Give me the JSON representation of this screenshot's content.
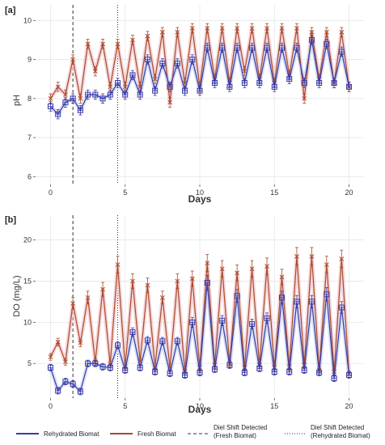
{
  "chart_data": [
    {
      "type": "line",
      "panel_label": "[a]",
      "xlabel": "Days",
      "ylabel": "pH",
      "xlim": [
        -1,
        21
      ],
      "ylim": [
        5.8,
        10.4
      ],
      "xticks": [
        0,
        5,
        10,
        15,
        20
      ],
      "yticks": [
        6,
        7,
        8,
        9,
        10
      ],
      "vlines": [
        {
          "x": 1.5,
          "style": "dashed"
        },
        {
          "x": 4.5,
          "style": "dotted"
        }
      ],
      "series": [
        {
          "name": "Rehydrated Biomat",
          "x": [
            0,
            0.5,
            1,
            1.5,
            2,
            2.5,
            3,
            3.5,
            4,
            4.5,
            5,
            5.5,
            6,
            6.5,
            7,
            7.5,
            8,
            8.5,
            9,
            9.5,
            10,
            10.5,
            11,
            11.5,
            12,
            12.5,
            13,
            13.5,
            14,
            14.5,
            15,
            15.5,
            16,
            16.5,
            17,
            17.5,
            18,
            18.5,
            19,
            19.5,
            20
          ],
          "values": [
            7.8,
            7.6,
            7.9,
            8.0,
            7.7,
            8.1,
            8.1,
            8.0,
            8.1,
            8.4,
            8.1,
            8.6,
            8.1,
            9.0,
            8.2,
            8.9,
            8.3,
            8.9,
            8.2,
            9.0,
            8.2,
            9.3,
            8.4,
            9.3,
            8.3,
            9.3,
            8.4,
            9.3,
            8.4,
            9.3,
            8.3,
            9.3,
            8.5,
            9.3,
            8.4,
            9.5,
            8.4,
            9.4,
            8.4,
            9.2,
            8.3
          ]
        },
        {
          "name": "Fresh Biomat",
          "x": [
            0,
            0.5,
            1,
            1.5,
            2,
            2.5,
            3,
            3.5,
            4,
            4.5,
            5,
            5.5,
            6,
            6.5,
            7,
            7.5,
            8,
            8.5,
            9,
            9.5,
            10,
            10.5,
            11,
            11.5,
            12,
            12.5,
            13,
            13.5,
            14,
            14.5,
            15,
            15.5,
            16,
            16.5,
            17,
            17.5,
            18,
            18.5,
            19,
            19.5,
            20
          ],
          "values": [
            8.0,
            8.3,
            8.1,
            9.0,
            8.0,
            9.4,
            8.7,
            9.4,
            8.3,
            9.4,
            8.3,
            9.5,
            8.3,
            9.6,
            8.5,
            9.7,
            7.9,
            9.7,
            8.4,
            9.8,
            8.3,
            9.8,
            8.5,
            9.8,
            8.4,
            9.8,
            8.7,
            9.8,
            8.5,
            9.8,
            8.4,
            9.8,
            8.6,
            9.8,
            8.0,
            9.7,
            8.5,
            9.7,
            8.4,
            9.7,
            8.3
          ]
        }
      ]
    },
    {
      "type": "line",
      "panel_label": "[b]",
      "xlabel": "Days",
      "ylabel": "DO (mg/L)",
      "xlim": [
        -1,
        21
      ],
      "ylim": [
        0.8,
        23
      ],
      "xticks": [
        0,
        5,
        10,
        15,
        20
      ],
      "yticks": [
        5,
        10,
        15,
        20
      ],
      "vlines": [
        {
          "x": 1.5,
          "style": "dashed"
        },
        {
          "x": 4.5,
          "style": "dotted"
        }
      ],
      "series": [
        {
          "name": "Rehydrated Biomat",
          "x": [
            0,
            0.5,
            1,
            1.5,
            2,
            2.5,
            3,
            3.5,
            4,
            4.5,
            5,
            5.5,
            6,
            6.5,
            7,
            7.5,
            8,
            8.5,
            9,
            9.5,
            10,
            10.5,
            11,
            11.5,
            12,
            12.5,
            13,
            13.5,
            14,
            14.5,
            15,
            15.5,
            16,
            16.5,
            17,
            17.5,
            18,
            18.5,
            19,
            19.5,
            20
          ],
          "values": [
            4.5,
            1.7,
            2.8,
            2.5,
            1.6,
            5.0,
            5.0,
            4.6,
            4.5,
            7.2,
            4.2,
            8.8,
            4.5,
            7.8,
            4.0,
            7.7,
            3.8,
            7.7,
            3.6,
            10.0,
            3.9,
            14.8,
            4.3,
            10.2,
            4.8,
            13.2,
            3.9,
            9.8,
            4.4,
            10.5,
            4.0,
            13.0,
            4.0,
            12.5,
            4.2,
            12.5,
            3.9,
            13.4,
            3.2,
            11.8,
            3.6
          ]
        },
        {
          "name": "Fresh Biomat",
          "x": [
            0,
            0.5,
            1,
            1.5,
            2,
            2.5,
            3,
            3.5,
            4,
            4.5,
            5,
            5.5,
            6,
            6.5,
            7,
            7.5,
            8,
            8.5,
            9,
            9.5,
            10,
            10.5,
            11,
            11.5,
            12,
            12.5,
            13,
            13.5,
            14,
            14.5,
            15,
            15.5,
            16,
            16.5,
            17,
            17.5,
            18,
            18.5,
            19,
            19.5,
            20
          ],
          "values": [
            5.8,
            7.6,
            5.2,
            12.3,
            7.5,
            13.0,
            5.2,
            14.0,
            4.9,
            17.0,
            4.6,
            15.0,
            5.3,
            14.5,
            4.6,
            13.0,
            4.5,
            15.0,
            4.0,
            15.3,
            4.5,
            17.2,
            4.8,
            16.5,
            5.0,
            16.0,
            4.5,
            16.5,
            4.8,
            16.8,
            4.5,
            15.5,
            4.6,
            18.0,
            4.8,
            18.0,
            4.2,
            17.0,
            4.0,
            17.7,
            3.7
          ]
        }
      ]
    }
  ],
  "legend": {
    "items": [
      {
        "label": "Rehydrated Biomat",
        "color": "#3a3aa8",
        "style": "solid"
      },
      {
        "label": "Fresh Biomat",
        "color": "#a84a2a",
        "style": "solid"
      },
      {
        "label": "Diel Shift Detected\n(Fresh Biomat)",
        "color": "#333333",
        "style": "dashed"
      },
      {
        "label": "Diel Shift Detected\n(Rehydrated Biomat)",
        "color": "#333333",
        "style": "dotted"
      }
    ]
  },
  "colors": {
    "rehydrated": "#3a3aa8",
    "fresh": "#a84a2a",
    "fresh_halo": "#f2c6cc",
    "rehydrated_halo": "#c9d6f2",
    "grid": "#e6e6e6"
  }
}
